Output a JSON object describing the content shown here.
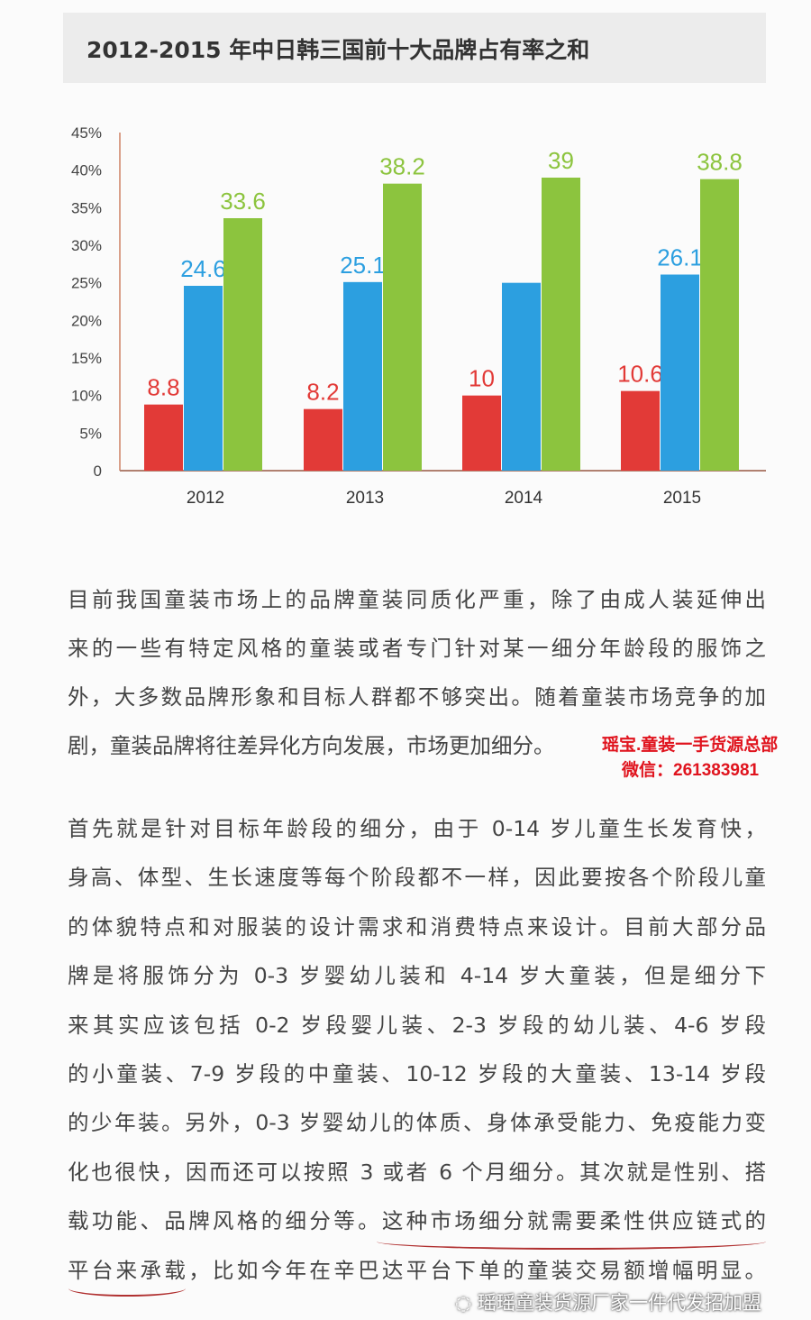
{
  "chart_data": {
    "type": "bar",
    "title": "2012-2015 年中日韩三国前十大品牌占有率之和",
    "categories": [
      "2012",
      "2013",
      "2014",
      "2015"
    ],
    "series": [
      {
        "values": [
          8.8,
          8.2,
          10,
          10.6
        ],
        "labels": [
          "8.8",
          "8.2",
          "10",
          "10.6"
        ],
        "color": "#e23a37"
      },
      {
        "values": [
          24.6,
          25.1,
          25,
          26.1
        ],
        "labels": [
          "24.6",
          "25.1",
          "",
          "26.1"
        ],
        "color": "#2c9fe0"
      },
      {
        "values": [
          33.6,
          38.2,
          39,
          38.8
        ],
        "labels": [
          "33.6",
          "38.2",
          "39",
          "38.8"
        ],
        "color": "#8cc43e"
      }
    ],
    "yticks": [
      "0",
      "5%",
      "10%",
      "15%",
      "20%",
      "25%",
      "30%",
      "35%",
      "40%",
      "45%"
    ],
    "ylim": [
      0,
      45
    ],
    "grid": false,
    "xlabel": "",
    "ylabel": ""
  },
  "paragraph1": [
    "目前我国童装市场上的品牌童装同质化严重，除了由成人装延伸出",
    "来的一些有特定风格的童装或者专门针对某一细分年龄段的服饰之",
    "外，大多数品牌形象和目标人群都不够突出。随着童装市场竞争的加",
    "剧，童装品牌将往差异化方向发展，市场更加细分。"
  ],
  "red_note": {
    "line1": "瑶宝.童装一手货源总部",
    "line2": "微信：261383981"
  },
  "paragraph2": [
    "首先就是针对目标年龄段的细分，由于 0-14 岁儿童生长发育快，",
    "身高、体型、生长速度等每个阶段都不一样，因此要按各个阶段儿童",
    "的体貌特点和对服装的设计需求和消费特点来设计。目前大部分品",
    "牌是将服饰分为 0-3 岁婴幼儿装和 4-14 岁大童装，但是细分下",
    "来其实应该包括 0-2 岁段婴儿装、2-3 岁段的幼儿装、4-6 岁段",
    "的小童装、7-9 岁段的中童装、10-12 岁段的大童装、13-14 岁段",
    "的少年装。另外，0-3 岁婴幼儿的体质、身体承受能力、免疫能力变",
    "化也很快，因而还可以按照 3 或者 6 个月细分。其次就是性别、搭",
    "载功能、品牌风格的细分等。这种市场细分就需要柔性供应链式的",
    "平台来承载，比如今年在辛巴达平台下单的童装交易额增幅明显。"
  ],
  "footer_watermark": "瑶瑶童装货源厂家一件代发招加盟"
}
